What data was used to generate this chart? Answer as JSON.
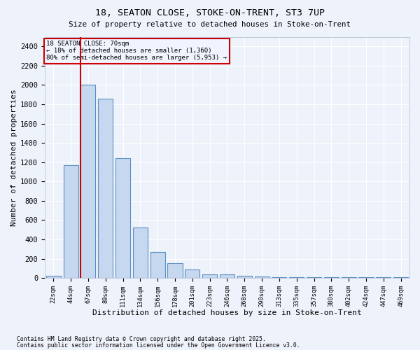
{
  "title1": "18, SEATON CLOSE, STOKE-ON-TRENT, ST3 7UP",
  "title2": "Size of property relative to detached houses in Stoke-on-Trent",
  "xlabel": "Distribution of detached houses by size in Stoke-on-Trent",
  "ylabel": "Number of detached properties",
  "categories": [
    "22sqm",
    "44sqm",
    "67sqm",
    "89sqm",
    "111sqm",
    "134sqm",
    "156sqm",
    "178sqm",
    "201sqm",
    "223sqm",
    "246sqm",
    "268sqm",
    "290sqm",
    "313sqm",
    "335sqm",
    "357sqm",
    "380sqm",
    "402sqm",
    "424sqm",
    "447sqm",
    "469sqm"
  ],
  "values": [
    25,
    1170,
    2000,
    1860,
    1240,
    520,
    270,
    150,
    90,
    40,
    40,
    20,
    15,
    8,
    5,
    5,
    5,
    5,
    5,
    5,
    5
  ],
  "bar_color": "#c5d8f0",
  "bar_edge_color": "#5a8fc2",
  "red_line_index": 2,
  "red_line_color": "#cc0000",
  "annotation_text": "18 SEATON CLOSE: 70sqm\n← 18% of detached houses are smaller (1,360)\n80% of semi-detached houses are larger (5,953) →",
  "annotation_box_edge_color": "#cc0000",
  "annotation_box_face_color": "#f0f4ff",
  "ylim": [
    0,
    2500
  ],
  "yticks": [
    0,
    200,
    400,
    600,
    800,
    1000,
    1200,
    1400,
    1600,
    1800,
    2000,
    2200,
    2400
  ],
  "bg_color": "#eef2fa",
  "grid_color": "#ffffff",
  "footer1": "Contains HM Land Registry data © Crown copyright and database right 2025.",
  "footer2": "Contains public sector information licensed under the Open Government Licence v3.0."
}
